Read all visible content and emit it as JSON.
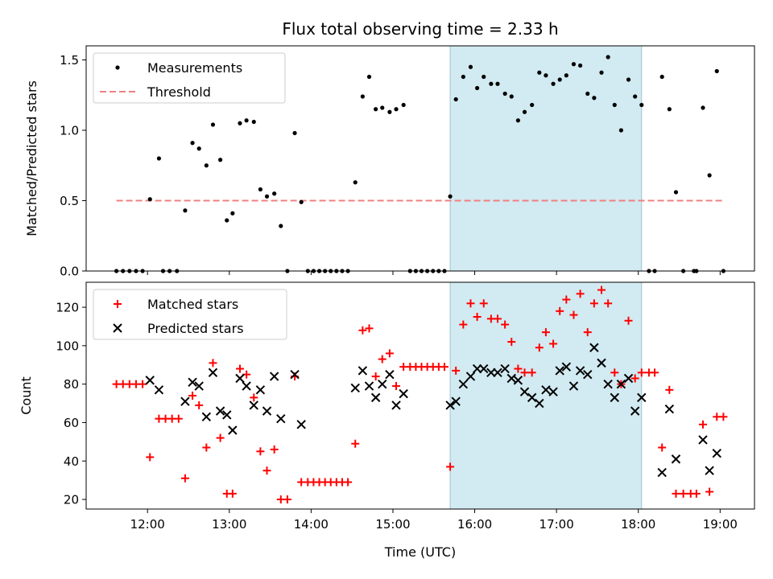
{
  "title": "Flux total observing time = 2.33 h",
  "colors": {
    "measurement": "#000000",
    "threshold": "#f08080",
    "matched": "#ff0000",
    "predicted": "#000000",
    "shade": "#add8e6"
  },
  "chart_data": [
    {
      "type": "scatter",
      "ylabel": "Matched/Predicted stars",
      "xlim": [
        11.25,
        19.42
      ],
      "ylim": [
        0,
        1.6
      ],
      "yticks": [
        0.0,
        0.5,
        1.0,
        1.5
      ],
      "ytick_labels": [
        "0.0",
        "0.5",
        "1.0",
        "1.5"
      ],
      "x_tick_values": [
        12,
        13,
        14,
        15,
        16,
        17,
        18,
        19
      ],
      "xtick_labels_shown": false,
      "legend": {
        "location": "upper-left",
        "labels": [
          "Measurements",
          "Threshold"
        ]
      },
      "shaded_region": [
        15.7,
        18.04
      ],
      "threshold": {
        "y": 0.5,
        "x_range": [
          11.62,
          19.05
        ]
      },
      "series": [
        {
          "name": "Measurements",
          "marker": "dot",
          "points": [
            [
              11.62,
              0.0
            ],
            [
              11.7,
              0.0
            ],
            [
              11.78,
              0.0
            ],
            [
              11.86,
              0.0
            ],
            [
              11.94,
              0.0
            ],
            [
              12.03,
              0.51
            ],
            [
              12.14,
              0.8
            ],
            [
              12.19,
              0.0
            ],
            [
              12.27,
              0.0
            ],
            [
              12.36,
              0.0
            ],
            [
              12.46,
              0.43
            ],
            [
              12.55,
              0.91
            ],
            [
              12.63,
              0.87
            ],
            [
              12.72,
              0.75
            ],
            [
              12.8,
              1.04
            ],
            [
              12.89,
              0.79
            ],
            [
              12.97,
              0.36
            ],
            [
              13.04,
              0.41
            ],
            [
              13.13,
              1.05
            ],
            [
              13.21,
              1.07
            ],
            [
              13.3,
              1.06
            ],
            [
              13.38,
              0.58
            ],
            [
              13.46,
              0.53
            ],
            [
              13.55,
              0.55
            ],
            [
              13.63,
              0.32
            ],
            [
              13.71,
              0.0
            ],
            [
              13.8,
              0.98
            ],
            [
              13.88,
              0.49
            ],
            [
              13.96,
              0.0
            ],
            [
              14.03,
              0.0
            ],
            [
              14.1,
              0.0
            ],
            [
              14.17,
              0.0
            ],
            [
              14.24,
              0.0
            ],
            [
              14.31,
              0.0
            ],
            [
              14.38,
              0.0
            ],
            [
              14.45,
              0.0
            ],
            [
              14.54,
              0.63
            ],
            [
              14.63,
              1.24
            ],
            [
              14.71,
              1.38
            ],
            [
              14.79,
              1.15
            ],
            [
              14.87,
              1.16
            ],
            [
              14.96,
              1.13
            ],
            [
              15.04,
              1.15
            ],
            [
              15.13,
              1.18
            ],
            [
              15.21,
              0.0
            ],
            [
              15.28,
              0.0
            ],
            [
              15.35,
              0.0
            ],
            [
              15.42,
              0.0
            ],
            [
              15.49,
              0.0
            ],
            [
              15.56,
              0.0
            ],
            [
              15.63,
              0.0
            ],
            [
              15.7,
              0.53
            ],
            [
              15.77,
              1.22
            ],
            [
              15.86,
              1.38
            ],
            [
              15.95,
              1.45
            ],
            [
              16.03,
              1.3
            ],
            [
              16.11,
              1.38
            ],
            [
              16.2,
              1.33
            ],
            [
              16.28,
              1.33
            ],
            [
              16.37,
              1.26
            ],
            [
              16.45,
              1.24
            ],
            [
              16.53,
              1.07
            ],
            [
              16.61,
              1.13
            ],
            [
              16.7,
              1.18
            ],
            [
              16.79,
              1.41
            ],
            [
              16.87,
              1.39
            ],
            [
              16.96,
              1.33
            ],
            [
              17.04,
              1.36
            ],
            [
              17.12,
              1.39
            ],
            [
              17.21,
              1.47
            ],
            [
              17.29,
              1.46
            ],
            [
              17.38,
              1.26
            ],
            [
              17.46,
              1.23
            ],
            [
              17.55,
              1.41
            ],
            [
              17.63,
              1.52
            ],
            [
              17.71,
              1.18
            ],
            [
              17.79,
              1.0
            ],
            [
              17.88,
              1.36
            ],
            [
              17.96,
              1.24
            ],
            [
              18.04,
              1.18
            ],
            [
              18.13,
              0.0
            ],
            [
              18.2,
              0.0
            ],
            [
              18.29,
              1.38
            ],
            [
              18.38,
              1.15
            ],
            [
              18.46,
              0.56
            ],
            [
              18.55,
              0.0
            ],
            [
              18.68,
              0.0
            ],
            [
              18.71,
              0.0
            ],
            [
              18.79,
              1.16
            ],
            [
              18.87,
              0.68
            ],
            [
              18.96,
              1.42
            ],
            [
              19.04,
              0.0
            ]
          ]
        }
      ]
    },
    {
      "type": "scatter",
      "xlabel": "Time (UTC)",
      "ylabel": "Count",
      "xlim": [
        11.25,
        19.42
      ],
      "ylim": [
        15,
        133
      ],
      "yticks": [
        20,
        40,
        60,
        80,
        100,
        120
      ],
      "ytick_labels": [
        "20",
        "40",
        "60",
        "80",
        "100",
        "120"
      ],
      "x_tick_values": [
        12,
        13,
        14,
        15,
        16,
        17,
        18,
        19
      ],
      "xtick_labels": [
        "12:00",
        "13:00",
        "14:00",
        "15:00",
        "16:00",
        "17:00",
        "18:00",
        "19:00"
      ],
      "legend": {
        "location": "upper-left",
        "labels": [
          "Matched stars",
          "Predicted stars"
        ]
      },
      "shaded_region": [
        15.7,
        18.04
      ],
      "series": [
        {
          "name": "Matched stars",
          "marker": "plus",
          "points": [
            [
              11.62,
              80
            ],
            [
              11.7,
              80
            ],
            [
              11.78,
              80
            ],
            [
              11.86,
              80
            ],
            [
              11.94,
              80
            ],
            [
              12.03,
              42
            ],
            [
              12.14,
              62
            ],
            [
              12.22,
              62
            ],
            [
              12.3,
              62
            ],
            [
              12.38,
              62
            ],
            [
              12.46,
              31
            ],
            [
              12.55,
              74
            ],
            [
              12.63,
              69
            ],
            [
              12.72,
              47
            ],
            [
              12.8,
              91
            ],
            [
              12.89,
              52
            ],
            [
              12.97,
              23
            ],
            [
              13.04,
              23
            ],
            [
              13.13,
              88
            ],
            [
              13.21,
              85
            ],
            [
              13.3,
              73
            ],
            [
              13.38,
              45
            ],
            [
              13.46,
              35
            ],
            [
              13.55,
              46
            ],
            [
              13.63,
              20
            ],
            [
              13.71,
              20
            ],
            [
              13.8,
              84
            ],
            [
              13.88,
              29
            ],
            [
              13.96,
              29
            ],
            [
              14.03,
              29
            ],
            [
              14.1,
              29
            ],
            [
              14.17,
              29
            ],
            [
              14.24,
              29
            ],
            [
              14.31,
              29
            ],
            [
              14.38,
              29
            ],
            [
              14.45,
              29
            ],
            [
              14.54,
              49
            ],
            [
              14.63,
              108
            ],
            [
              14.71,
              109
            ],
            [
              14.79,
              84
            ],
            [
              14.87,
              93
            ],
            [
              14.96,
              96
            ],
            [
              15.04,
              79
            ],
            [
              15.13,
              89
            ],
            [
              15.21,
              89
            ],
            [
              15.28,
              89
            ],
            [
              15.35,
              89
            ],
            [
              15.42,
              89
            ],
            [
              15.49,
              89
            ],
            [
              15.56,
              89
            ],
            [
              15.63,
              89
            ],
            [
              15.7,
              37
            ],
            [
              15.77,
              87
            ],
            [
              15.86,
              111
            ],
            [
              15.95,
              122
            ],
            [
              16.03,
              115
            ],
            [
              16.11,
              122
            ],
            [
              16.2,
              114
            ],
            [
              16.28,
              114
            ],
            [
              16.37,
              111
            ],
            [
              16.45,
              102
            ],
            [
              16.53,
              88
            ],
            [
              16.61,
              86
            ],
            [
              16.7,
              86
            ],
            [
              16.79,
              99
            ],
            [
              16.87,
              107
            ],
            [
              16.96,
              101
            ],
            [
              17.04,
              118
            ],
            [
              17.12,
              124
            ],
            [
              17.21,
              116
            ],
            [
              17.29,
              127
            ],
            [
              17.38,
              107
            ],
            [
              17.46,
              122
            ],
            [
              17.55,
              129
            ],
            [
              17.63,
              122
            ],
            [
              17.71,
              86
            ],
            [
              17.79,
              80
            ],
            [
              17.88,
              113
            ],
            [
              17.96,
              83
            ],
            [
              18.04,
              86
            ],
            [
              18.13,
              86
            ],
            [
              18.2,
              86
            ],
            [
              18.29,
              47
            ],
            [
              18.38,
              77
            ],
            [
              18.46,
              23
            ],
            [
              18.55,
              23
            ],
            [
              18.64,
              23
            ],
            [
              18.71,
              23
            ],
            [
              18.79,
              59
            ],
            [
              18.87,
              24
            ],
            [
              18.96,
              63
            ],
            [
              19.04,
              63
            ]
          ]
        },
        {
          "name": "Predicted stars",
          "marker": "x",
          "points": [
            [
              12.03,
              82
            ],
            [
              12.14,
              77
            ],
            [
              12.46,
              71
            ],
            [
              12.55,
              81
            ],
            [
              12.63,
              79
            ],
            [
              12.72,
              63
            ],
            [
              12.8,
              86
            ],
            [
              12.89,
              66
            ],
            [
              12.97,
              64
            ],
            [
              13.04,
              56
            ],
            [
              13.13,
              83
            ],
            [
              13.21,
              79
            ],
            [
              13.3,
              69
            ],
            [
              13.38,
              77
            ],
            [
              13.46,
              66
            ],
            [
              13.55,
              84
            ],
            [
              13.63,
              62
            ],
            [
              13.8,
              85
            ],
            [
              13.88,
              59
            ],
            [
              14.54,
              78
            ],
            [
              14.63,
              87
            ],
            [
              14.71,
              79
            ],
            [
              14.79,
              73
            ],
            [
              14.87,
              80
            ],
            [
              14.96,
              85
            ],
            [
              15.04,
              69
            ],
            [
              15.13,
              75
            ],
            [
              15.7,
              69
            ],
            [
              15.77,
              71
            ],
            [
              15.86,
              80
            ],
            [
              15.95,
              84
            ],
            [
              16.03,
              88
            ],
            [
              16.11,
              88
            ],
            [
              16.2,
              86
            ],
            [
              16.28,
              86
            ],
            [
              16.37,
              88
            ],
            [
              16.45,
              83
            ],
            [
              16.53,
              82
            ],
            [
              16.61,
              76
            ],
            [
              16.7,
              73
            ],
            [
              16.79,
              70
            ],
            [
              16.87,
              77
            ],
            [
              16.96,
              76
            ],
            [
              17.04,
              87
            ],
            [
              17.12,
              89
            ],
            [
              17.21,
              79
            ],
            [
              17.29,
              87
            ],
            [
              17.38,
              85
            ],
            [
              17.46,
              99
            ],
            [
              17.55,
              91
            ],
            [
              17.63,
              80
            ],
            [
              17.71,
              73
            ],
            [
              17.79,
              80
            ],
            [
              17.88,
              83
            ],
            [
              17.96,
              66
            ],
            [
              18.04,
              73
            ],
            [
              18.29,
              34
            ],
            [
              18.38,
              67
            ],
            [
              18.46,
              41
            ],
            [
              18.79,
              51
            ],
            [
              18.87,
              35
            ],
            [
              18.96,
              44
            ]
          ]
        }
      ]
    }
  ]
}
